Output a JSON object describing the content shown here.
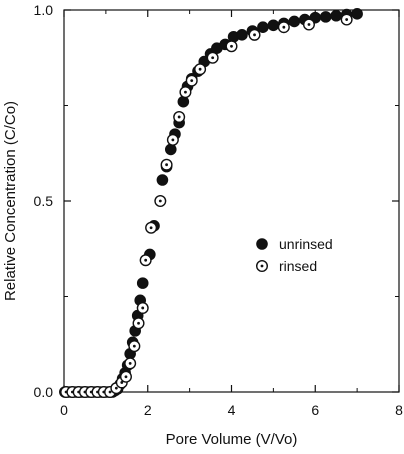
{
  "chart_data": {
    "type": "scatter",
    "xlabel": "Pore Volume (V/Vo)",
    "ylabel": "Relative Concentration (C/Co)",
    "xlim": [
      0,
      8
    ],
    "ylim": [
      0,
      1
    ],
    "xticks": [
      0,
      2,
      4,
      6,
      8
    ],
    "yticks": [
      0,
      0.5,
      1
    ],
    "xtick_labels": [
      "0",
      "2",
      "4",
      "6",
      "8"
    ],
    "ytick_labels": [
      "0.0",
      "0.5",
      "1.0"
    ],
    "legend_position": "center-right",
    "series": [
      {
        "name": "unrinsed",
        "marker": "filled-circle",
        "color": "#111111",
        "points": [
          [
            0.02,
            0.0
          ],
          [
            0.08,
            0.0
          ],
          [
            0.14,
            0.0
          ],
          [
            0.2,
            0.0
          ],
          [
            0.26,
            0.0
          ],
          [
            0.32,
            0.0
          ],
          [
            0.38,
            0.0
          ],
          [
            0.44,
            0.0
          ],
          [
            0.5,
            0.0
          ],
          [
            0.56,
            0.0
          ],
          [
            0.62,
            0.0
          ],
          [
            0.68,
            0.0
          ],
          [
            0.74,
            0.0
          ],
          [
            0.8,
            0.0
          ],
          [
            0.86,
            0.0
          ],
          [
            0.92,
            0.0
          ],
          [
            0.98,
            0.0
          ],
          [
            1.04,
            0.0
          ],
          [
            1.1,
            0.0
          ],
          [
            1.16,
            0.0
          ],
          [
            1.22,
            0.004
          ],
          [
            1.28,
            0.008
          ],
          [
            1.34,
            0.02
          ],
          [
            1.4,
            0.035
          ],
          [
            1.46,
            0.05
          ],
          [
            1.52,
            0.07
          ],
          [
            1.58,
            0.1
          ],
          [
            1.64,
            0.13
          ],
          [
            1.7,
            0.16
          ],
          [
            1.76,
            0.2
          ],
          [
            1.82,
            0.24
          ],
          [
            1.88,
            0.285
          ],
          [
            1.95,
            0.345
          ],
          [
            2.05,
            0.36
          ],
          [
            2.15,
            0.435
          ],
          [
            2.35,
            0.555
          ],
          [
            2.45,
            0.59
          ],
          [
            2.55,
            0.635
          ],
          [
            2.65,
            0.675
          ],
          [
            2.75,
            0.705
          ],
          [
            2.85,
            0.76
          ],
          [
            2.95,
            0.8
          ],
          [
            3.05,
            0.82
          ],
          [
            3.2,
            0.84
          ],
          [
            3.35,
            0.865
          ],
          [
            3.5,
            0.885
          ],
          [
            3.65,
            0.9
          ],
          [
            3.85,
            0.91
          ],
          [
            4.05,
            0.93
          ],
          [
            4.25,
            0.935
          ],
          [
            4.5,
            0.945
          ],
          [
            4.75,
            0.955
          ],
          [
            5.0,
            0.96
          ],
          [
            5.25,
            0.965
          ],
          [
            5.5,
            0.97
          ],
          [
            5.75,
            0.975
          ],
          [
            6.0,
            0.98
          ],
          [
            6.25,
            0.982
          ],
          [
            6.5,
            0.985
          ],
          [
            6.75,
            0.988
          ],
          [
            7.0,
            0.99
          ]
        ]
      },
      {
        "name": "rinsed",
        "marker": "open-circle-dot",
        "color": "#111111",
        "points": [
          [
            0.05,
            0.0
          ],
          [
            0.2,
            0.0
          ],
          [
            0.35,
            0.0
          ],
          [
            0.5,
            0.0
          ],
          [
            0.65,
            0.0
          ],
          [
            0.8,
            0.0
          ],
          [
            0.95,
            0.0
          ],
          [
            1.1,
            0.0
          ],
          [
            1.25,
            0.01
          ],
          [
            1.38,
            0.025
          ],
          [
            1.48,
            0.04
          ],
          [
            1.58,
            0.075
          ],
          [
            1.68,
            0.12
          ],
          [
            1.78,
            0.18
          ],
          [
            1.88,
            0.22
          ],
          [
            1.95,
            0.345
          ],
          [
            2.08,
            0.43
          ],
          [
            2.3,
            0.5
          ],
          [
            2.45,
            0.595
          ],
          [
            2.6,
            0.66
          ],
          [
            2.75,
            0.72
          ],
          [
            2.9,
            0.785
          ],
          [
            3.05,
            0.815
          ],
          [
            3.25,
            0.845
          ],
          [
            3.55,
            0.875
          ],
          [
            4.0,
            0.905
          ],
          [
            4.55,
            0.935
          ],
          [
            5.25,
            0.955
          ],
          [
            5.85,
            0.962
          ],
          [
            6.75,
            0.975
          ]
        ]
      }
    ]
  }
}
